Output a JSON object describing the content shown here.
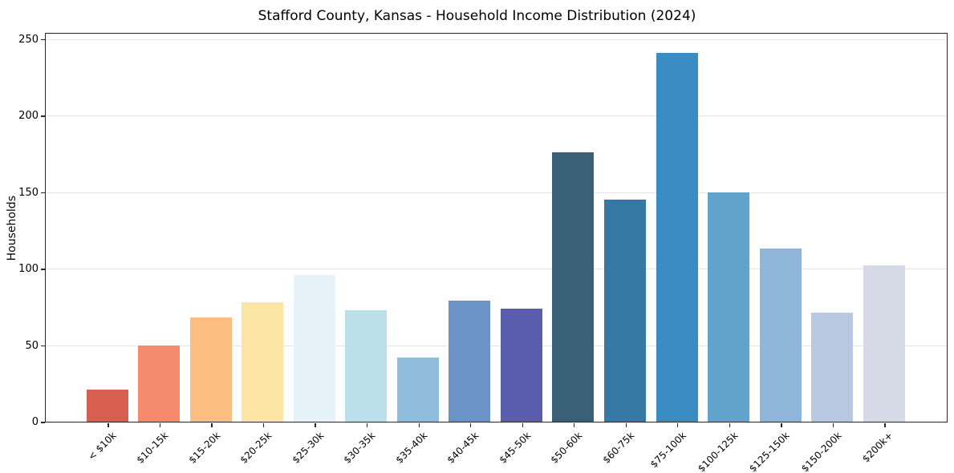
{
  "chart_data": {
    "type": "bar",
    "title": "Stafford County, Kansas - Household Income Distribution (2024)",
    "xlabel": "",
    "ylabel": "Households",
    "categories": [
      "< $10k",
      "$10-15k",
      "$15-20k",
      "$20-25k",
      "$25-30k",
      "$30-35k",
      "$35-40k",
      "$40-45k",
      "$45-50k",
      "$50-60k",
      "$60-75k",
      "$75-100k",
      "$100-125k",
      "$125-150k",
      "$150-200k",
      "$200k+"
    ],
    "values": [
      21,
      50,
      68,
      78,
      96,
      73,
      42,
      79,
      74,
      176,
      145,
      241,
      150,
      113,
      71,
      102
    ],
    "bar_colors": [
      "#d65f51",
      "#f58a6d",
      "#fcbd80",
      "#fde5a5",
      "#e5f2f8",
      "#bcdfec",
      "#90bddc",
      "#6b93c5",
      "#5a5dab",
      "#3a6078",
      "#3579a4",
      "#3a8cc3",
      "#61a3cb",
      "#8fb5d8",
      "#b8c8e0",
      "#d6d9e6"
    ],
    "ylim": [
      0,
      254
    ],
    "yticks": [
      0,
      50,
      100,
      150,
      200,
      250
    ],
    "grid": "horizontal gridlines at y ticks",
    "gridline_color": "#e6e6e6",
    "axis_color": "#262626",
    "background_color": "#ffffff",
    "legend": "none",
    "x_tick_label_rotation_deg": 45
  }
}
